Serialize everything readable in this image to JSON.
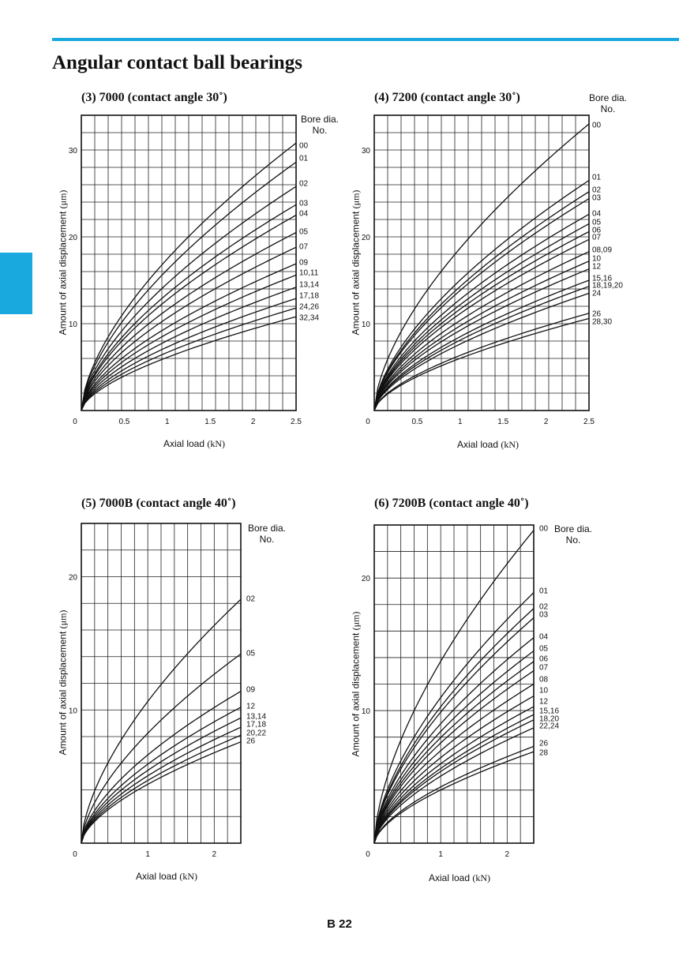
{
  "page": {
    "title": "Angular contact ball bearings",
    "page_number": "B 22",
    "accent_color": "#1aa9df"
  },
  "chart_data": [
    {
      "type": "line",
      "title": "(3) 7000 (contact angle 30˚)",
      "xlabel": "Axial load",
      "xunit": "(kN)",
      "ylabel": "Amount of axial displacement",
      "yunit": "(μm)",
      "legend_title": [
        "Bore dia.",
        "No."
      ],
      "xlim": [
        0,
        2.5
      ],
      "ylim": [
        0,
        34
      ],
      "xticks": [
        "0",
        "0.5",
        "1",
        "1.5",
        "2",
        "2.5"
      ],
      "yticks": [
        "10",
        "20",
        "30"
      ],
      "grid": true,
      "series": [
        {
          "name": "00",
          "end_y": 30.8
        },
        {
          "name": "01",
          "end_y": 28.6
        },
        {
          "name": "02",
          "end_y": 25.8
        },
        {
          "name": "03",
          "end_y": 23.7
        },
        {
          "name": "04",
          "end_y": 22.5
        },
        {
          "name": "05",
          "end_y": 20.5
        },
        {
          "name": "07",
          "end_y": 18.8
        },
        {
          "name": "09",
          "end_y": 16.9
        },
        {
          "name": "10,11",
          "end_y": 15.6
        },
        {
          "name": "13,14",
          "end_y": 14.2
        },
        {
          "name": "17,18",
          "end_y": 12.9
        },
        {
          "name": "24,26",
          "end_y": 11.8
        },
        {
          "name": "32,34",
          "end_y": 10.8
        }
      ]
    },
    {
      "type": "line",
      "title": "(4) 7200 (contact angle 30˚)",
      "xlabel": "Axial load",
      "xunit": "(kN)",
      "ylabel": "Amount of axial displacement",
      "yunit": "(μm)",
      "legend_title": [
        "Bore dia.",
        "No."
      ],
      "xlim": [
        0,
        2.5
      ],
      "ylim": [
        0,
        34
      ],
      "xticks": [
        "0",
        "0.5",
        "1",
        "1.5",
        "2",
        "2.5"
      ],
      "yticks": [
        "10",
        "20",
        "30"
      ],
      "grid": true,
      "series": [
        {
          "name": "00",
          "end_y": 33.0
        },
        {
          "name": "01",
          "end_y": 26.5
        },
        {
          "name": "02",
          "end_y": 25.2
        },
        {
          "name": "03",
          "end_y": 24.4
        },
        {
          "name": "04",
          "end_y": 22.6
        },
        {
          "name": "05",
          "end_y": 21.5
        },
        {
          "name": "06",
          "end_y": 20.6
        },
        {
          "name": "07",
          "end_y": 19.7
        },
        {
          "name": "08,09",
          "end_y": 18.3
        },
        {
          "name": "10",
          "end_y": 17.2
        },
        {
          "name": "12",
          "end_y": 16.3
        },
        {
          "name": "15,16",
          "end_y": 15.0
        },
        {
          "name": "18,19,20",
          "end_y": 14.3
        },
        {
          "name": "24",
          "end_y": 13.5
        },
        {
          "name": "26",
          "end_y": 11.2
        },
        {
          "name": "28,30",
          "end_y": 10.6
        }
      ]
    },
    {
      "type": "line",
      "title": "(5) 7000B (contact angle 40˚)",
      "xlabel": "Axial load",
      "xunit": "(kN)",
      "ylabel": "Amount of axial displacement",
      "yunit": "(μm)",
      "legend_title": [
        "Bore dia.",
        "No."
      ],
      "xlim": [
        0,
        2.4
      ],
      "ylim": [
        0,
        24
      ],
      "xticks": [
        "0",
        "1",
        "2"
      ],
      "yticks": [
        "10",
        "20"
      ],
      "grid": true,
      "series": [
        {
          "name": "02",
          "end_y": 18.3
        },
        {
          "name": "05",
          "end_y": 14.2
        },
        {
          "name": "09",
          "end_y": 11.4
        },
        {
          "name": "12",
          "end_y": 10.2
        },
        {
          "name": "13,14",
          "end_y": 9.4
        },
        {
          "name": "17,18",
          "end_y": 8.7
        },
        {
          "name": "20,22",
          "end_y": 8.1
        },
        {
          "name": "26",
          "end_y": 7.6
        }
      ]
    },
    {
      "type": "line",
      "title": "(6) 7200B (contact angle 40˚)",
      "xlabel": "Axial load",
      "xunit": "(kN)",
      "ylabel": "Amount of axial displacement",
      "yunit": "(μm)",
      "legend_title": [
        "Bore dia.",
        "No."
      ],
      "xlim": [
        0,
        2.4
      ],
      "ylim": [
        0,
        24
      ],
      "xticks": [
        "0",
        "1",
        "2"
      ],
      "yticks": [
        "10",
        "20"
      ],
      "grid": true,
      "series": [
        {
          "name": "00",
          "end_y": 23.6
        },
        {
          "name": "01",
          "end_y": 18.9
        },
        {
          "name": "02",
          "end_y": 17.7
        },
        {
          "name": "03",
          "end_y": 17.0
        },
        {
          "name": "04",
          "end_y": 15.5
        },
        {
          "name": "05",
          "end_y": 14.5
        },
        {
          "name": "06",
          "end_y": 13.7
        },
        {
          "name": "07",
          "end_y": 13.0
        },
        {
          "name": "08",
          "end_y": 12.0
        },
        {
          "name": "10",
          "end_y": 11.1
        },
        {
          "name": "12",
          "end_y": 10.3
        },
        {
          "name": "15,16",
          "end_y": 9.7
        },
        {
          "name": "18,20",
          "end_y": 9.3
        },
        {
          "name": "22,24",
          "end_y": 8.7
        },
        {
          "name": "26",
          "end_y": 7.3
        },
        {
          "name": "28",
          "end_y": 6.9
        }
      ]
    }
  ]
}
